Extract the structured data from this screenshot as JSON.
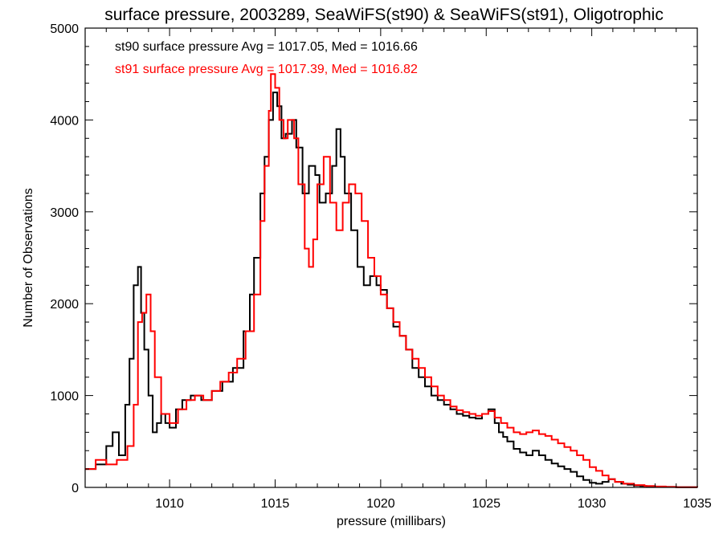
{
  "chart_data": {
    "type": "line",
    "step": true,
    "title": "surface pressure, 2003289, SeaWiFS(st90) & SeaWiFS(st91), Oligotrophic",
    "xlabel": "pressure (millibars)",
    "ylabel": "Number of Observations",
    "xlim": [
      1006,
      1035
    ],
    "ylim": [
      0,
      5000
    ],
    "x_ticks": [
      1010,
      1015,
      1020,
      1025,
      1030,
      1035
    ],
    "y_ticks": [
      0,
      1000,
      2000,
      3000,
      4000,
      5000
    ],
    "x_tick_labels": [
      "1010",
      "1015",
      "1020",
      "1025",
      "1030",
      "1035"
    ],
    "y_tick_labels": [
      "0",
      "1000",
      "2000",
      "3000",
      "4000",
      "5000"
    ],
    "legend": [
      {
        "text": "st90 surface pressure Avg = 1017.05, Med = 1016.66",
        "color": "#000000"
      },
      {
        "text": "st91 surface pressure Avg = 1017.39, Med = 1016.82",
        "color": "#ff0000"
      }
    ],
    "series": [
      {
        "color": "#000000",
        "x": [
          1006.0,
          1006.5,
          1007.0,
          1007.3,
          1007.6,
          1007.9,
          1008.1,
          1008.3,
          1008.5,
          1008.65,
          1008.8,
          1009.0,
          1009.2,
          1009.4,
          1009.6,
          1009.8,
          1010.0,
          1010.3,
          1010.6,
          1011.0,
          1011.5,
          1012.0,
          1012.5,
          1013.0,
          1013.5,
          1013.8,
          1014.0,
          1014.3,
          1014.5,
          1014.7,
          1014.9,
          1015.1,
          1015.3,
          1015.5,
          1015.8,
          1016.0,
          1016.3,
          1016.6,
          1016.9,
          1017.1,
          1017.4,
          1017.7,
          1017.9,
          1018.1,
          1018.3,
          1018.6,
          1018.9,
          1019.2,
          1019.5,
          1019.8,
          1020.0,
          1020.3,
          1020.6,
          1020.9,
          1021.2,
          1021.5,
          1021.8,
          1022.1,
          1022.4,
          1022.7,
          1023.0,
          1023.3,
          1023.6,
          1023.9,
          1024.2,
          1024.5,
          1024.8,
          1025.1,
          1025.4,
          1025.6,
          1025.8,
          1026.0,
          1026.3,
          1026.6,
          1026.9,
          1027.2,
          1027.5,
          1027.8,
          1028.1,
          1028.4,
          1028.7,
          1029.0,
          1029.3,
          1029.6,
          1029.9,
          1030.2,
          1030.5,
          1030.8,
          1031.1,
          1031.4,
          1031.7,
          1032.0,
          1032.3,
          1032.6,
          1033.0,
          1033.5,
          1034.0,
          1035.0
        ],
        "y": [
          200,
          250,
          450,
          600,
          350,
          900,
          1400,
          2200,
          2400,
          1900,
          1500,
          1000,
          600,
          700,
          800,
          700,
          650,
          850,
          950,
          1000,
          950,
          1050,
          1150,
          1300,
          1700,
          2100,
          2500,
          3200,
          3600,
          4000,
          4300,
          4150,
          3800,
          3850,
          4000,
          3700,
          3200,
          3500,
          3400,
          3100,
          3200,
          3500,
          3900,
          3600,
          3200,
          2800,
          2400,
          2200,
          2300,
          2200,
          2150,
          1950,
          1750,
          1650,
          1500,
          1300,
          1200,
          1100,
          1000,
          950,
          900,
          850,
          800,
          780,
          760,
          750,
          800,
          850,
          700,
          600,
          550,
          500,
          420,
          380,
          350,
          400,
          350,
          300,
          260,
          230,
          200,
          170,
          120,
          80,
          50,
          40,
          60,
          90,
          60,
          40,
          30,
          20,
          15,
          10,
          8,
          5,
          3,
          2
        ]
      },
      {
        "color": "#ff0000",
        "x": [
          1006.0,
          1006.5,
          1007.0,
          1007.5,
          1008.0,
          1008.3,
          1008.5,
          1008.7,
          1008.9,
          1009.1,
          1009.3,
          1009.6,
          1010.0,
          1010.4,
          1010.8,
          1011.2,
          1011.6,
          1012.0,
          1012.4,
          1012.8,
          1013.2,
          1013.6,
          1014.0,
          1014.3,
          1014.5,
          1014.7,
          1014.8,
          1015.0,
          1015.2,
          1015.4,
          1015.6,
          1015.9,
          1016.1,
          1016.4,
          1016.6,
          1016.8,
          1017.0,
          1017.3,
          1017.6,
          1017.9,
          1018.2,
          1018.5,
          1018.8,
          1019.1,
          1019.4,
          1019.7,
          1020.0,
          1020.3,
          1020.6,
          1020.9,
          1021.2,
          1021.5,
          1021.8,
          1022.1,
          1022.4,
          1022.7,
          1023.0,
          1023.3,
          1023.6,
          1023.9,
          1024.2,
          1024.5,
          1024.8,
          1025.1,
          1025.4,
          1025.7,
          1026.0,
          1026.3,
          1026.6,
          1026.9,
          1027.2,
          1027.5,
          1027.8,
          1028.1,
          1028.4,
          1028.7,
          1029.0,
          1029.3,
          1029.6,
          1029.9,
          1030.2,
          1030.5,
          1030.8,
          1031.1,
          1031.5,
          1032.0,
          1032.5,
          1033.0,
          1033.5,
          1034.0,
          1035.0
        ],
        "y": [
          200,
          300,
          250,
          300,
          450,
          900,
          1800,
          1900,
          2100,
          1700,
          1200,
          800,
          700,
          850,
          950,
          1000,
          950,
          1050,
          1150,
          1250,
          1400,
          1700,
          2100,
          2900,
          3500,
          4100,
          4500,
          4350,
          4000,
          3800,
          4000,
          3800,
          3300,
          2600,
          2400,
          2700,
          3300,
          3600,
          3100,
          2800,
          3100,
          3300,
          3200,
          2900,
          2500,
          2300,
          2100,
          1950,
          1800,
          1650,
          1500,
          1400,
          1300,
          1200,
          1100,
          1000,
          950,
          880,
          840,
          820,
          800,
          780,
          800,
          830,
          760,
          700,
          650,
          600,
          580,
          600,
          620,
          580,
          560,
          520,
          480,
          440,
          400,
          350,
          300,
          220,
          180,
          130,
          90,
          60,
          40,
          25,
          15,
          10,
          5,
          3,
          2
        ]
      }
    ]
  }
}
